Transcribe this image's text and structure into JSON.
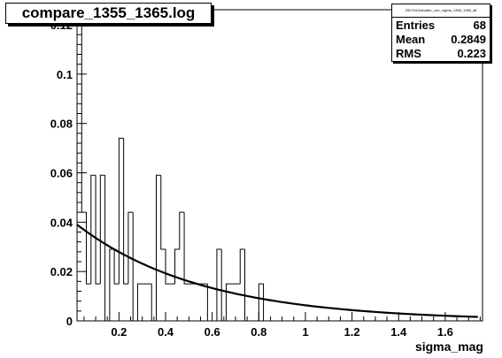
{
  "chart_data": {
    "type": "histogram",
    "title": "compare_1355_1365.log",
    "xlabel": "sigma_mag",
    "ylabel": "",
    "xlim": [
      0.02,
      1.76
    ],
    "ylim": [
      0,
      0.125
    ],
    "x_ticks": [
      "0.2",
      "0.4",
      "0.6",
      "0.8",
      "1",
      "1.2",
      "1.4",
      "1.6"
    ],
    "x_tick_values": [
      0.2,
      0.4,
      0.6,
      0.8,
      1.0,
      1.2,
      1.4,
      1.6
    ],
    "y_ticks": [
      "0",
      "0.02",
      "0.04",
      "0.06",
      "0.08",
      "0.1",
      "0.12"
    ],
    "y_tick_values": [
      0,
      0.02,
      0.04,
      0.06,
      0.08,
      0.1,
      0.12
    ],
    "bin_width": 0.02,
    "bins": [
      {
        "x0": 0.02,
        "x1": 0.04,
        "y": 0.12
      },
      {
        "x0": 0.04,
        "x1": 0.06,
        "y": 0.044
      },
      {
        "x0": 0.06,
        "x1": 0.08,
        "y": 0.015
      },
      {
        "x0": 0.08,
        "x1": 0.1,
        "y": 0.059
      },
      {
        "x0": 0.1,
        "x1": 0.12,
        "y": 0.015
      },
      {
        "x0": 0.12,
        "x1": 0.14,
        "y": 0.059
      },
      {
        "x0": 0.14,
        "x1": 0.16,
        "y": 0.0
      },
      {
        "x0": 0.16,
        "x1": 0.18,
        "y": 0.029
      },
      {
        "x0": 0.18,
        "x1": 0.2,
        "y": 0.015
      },
      {
        "x0": 0.2,
        "x1": 0.22,
        "y": 0.074
      },
      {
        "x0": 0.22,
        "x1": 0.24,
        "y": 0.015
      },
      {
        "x0": 0.24,
        "x1": 0.26,
        "y": 0.044
      },
      {
        "x0": 0.26,
        "x1": 0.28,
        "y": 0.0
      },
      {
        "x0": 0.28,
        "x1": 0.3,
        "y": 0.015
      },
      {
        "x0": 0.3,
        "x1": 0.32,
        "y": 0.015
      },
      {
        "x0": 0.32,
        "x1": 0.34,
        "y": 0.015
      },
      {
        "x0": 0.34,
        "x1": 0.36,
        "y": 0.0
      },
      {
        "x0": 0.36,
        "x1": 0.38,
        "y": 0.059
      },
      {
        "x0": 0.38,
        "x1": 0.4,
        "y": 0.029
      },
      {
        "x0": 0.4,
        "x1": 0.42,
        "y": 0.015
      },
      {
        "x0": 0.42,
        "x1": 0.44,
        "y": 0.015
      },
      {
        "x0": 0.44,
        "x1": 0.46,
        "y": 0.029
      },
      {
        "x0": 0.46,
        "x1": 0.48,
        "y": 0.044
      },
      {
        "x0": 0.48,
        "x1": 0.5,
        "y": 0.015
      },
      {
        "x0": 0.5,
        "x1": 0.52,
        "y": 0.015
      },
      {
        "x0": 0.52,
        "x1": 0.54,
        "y": 0.015
      },
      {
        "x0": 0.54,
        "x1": 0.56,
        "y": 0.015
      },
      {
        "x0": 0.56,
        "x1": 0.58,
        "y": 0.015
      },
      {
        "x0": 0.58,
        "x1": 0.6,
        "y": 0.0
      },
      {
        "x0": 0.6,
        "x1": 0.62,
        "y": 0.0
      },
      {
        "x0": 0.62,
        "x1": 0.64,
        "y": 0.029
      },
      {
        "x0": 0.64,
        "x1": 0.66,
        "y": 0.0
      },
      {
        "x0": 0.66,
        "x1": 0.68,
        "y": 0.015
      },
      {
        "x0": 0.68,
        "x1": 0.7,
        "y": 0.015
      },
      {
        "x0": 0.7,
        "x1": 0.72,
        "y": 0.015
      },
      {
        "x0": 0.72,
        "x1": 0.74,
        "y": 0.029
      },
      {
        "x0": 0.74,
        "x1": 0.76,
        "y": 0.0
      },
      {
        "x0": 0.76,
        "x1": 0.78,
        "y": 0.0
      },
      {
        "x0": 0.78,
        "x1": 0.8,
        "y": 0.0
      },
      {
        "x0": 0.8,
        "x1": 0.82,
        "y": 0.015
      }
    ],
    "fit_curve": {
      "type": "exponential",
      "x_start": 0.02,
      "x_end": 1.74,
      "y_at_start": 0.039,
      "y_at_end": 0.0016
    }
  },
  "stats_box": {
    "name": "20070419shutter_corr_sigma_1355_1365_all",
    "entries_label": "Entries",
    "entries_value": "68",
    "mean_label": "Mean",
    "mean_value": "0.2849",
    "rms_label": "RMS",
    "rms_value": "0.223"
  },
  "colors": {
    "background": "#ffffff",
    "axis": "#000000",
    "histogram": "#000000",
    "fit": "#000000"
  }
}
